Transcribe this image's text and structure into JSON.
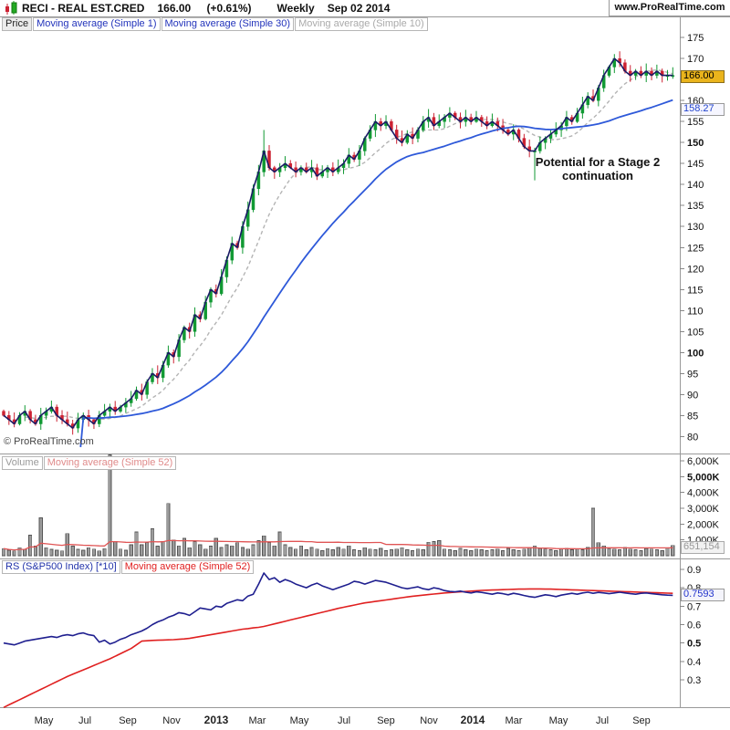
{
  "header": {
    "symbol_title": "RECI - REAL EST.CRED",
    "last_price": "166.00",
    "change_percent": "(+0.61%)",
    "timeframe": "Weekly",
    "date": "Sep 02 2014",
    "website": "www.ProRealTime.com"
  },
  "price_pane": {
    "buttons": [
      {
        "label": "Price",
        "color": "#222222",
        "bg": "#ececec"
      },
      {
        "label": "Moving average (Simple 1)",
        "color": "#2233bb",
        "bg": "#ffffff"
      },
      {
        "label": "Moving average (Simple 30)",
        "color": "#2233bb",
        "bg": "#ffffff"
      },
      {
        "label": "Moving average (Simple 10)",
        "color": "#aaaaaa",
        "bg": "#ffffff"
      }
    ],
    "annotation_line1": "Potential for a Stage 2",
    "annotation_line2": "continuation",
    "copyright": "© ProRealTime.com",
    "last_price_label": "166.00",
    "ma30_label": "158.27"
  },
  "volume_pane": {
    "buttons": [
      {
        "label": "Volume",
        "color": "#999999",
        "bg": "#ffffff"
      },
      {
        "label": "Moving average (Simple 52)",
        "color": "#e08a8a",
        "bg": "#ffffff"
      }
    ],
    "last_volume_label": "651,154"
  },
  "rs_pane": {
    "buttons": [
      {
        "label": "RS (S&P500 Index) [*10]",
        "color": "#2233aa",
        "bg": "#ffffff"
      },
      {
        "label": "Moving average (Simple 52)",
        "color": "#e02020",
        "bg": "#ffffff"
      }
    ],
    "last_rs_label": "0.7593"
  },
  "colors": {
    "candle_up": "#119933",
    "candle_down": "#cc2233",
    "close_line": "#1b1b66",
    "ma10": "#b4b4b4",
    "ma30": "#2e59d9",
    "volume_bar_fill": "#9c9c9c",
    "volume_bar_stroke": "#555555",
    "volume_ma": "#e05555",
    "rs_line": "#1f1f8f",
    "rs_ma": "#e02020",
    "last_price_box_bg": "#eab41c",
    "axis_text": "#111111",
    "border": "#999999"
  },
  "chart_data": {
    "type": "candlestick-multi-pane",
    "x0": 4,
    "dx": 5.82,
    "price": {
      "ylim": [
        78,
        177
      ],
      "ticks": [
        80,
        85,
        90,
        95,
        100,
        105,
        110,
        115,
        120,
        125,
        130,
        135,
        140,
        145,
        150,
        155,
        160,
        165,
        170,
        175
      ],
      "bold_ticks": [
        100,
        150
      ],
      "closes": [
        85,
        84,
        83,
        85,
        86,
        84,
        83,
        85,
        86,
        87,
        85,
        84,
        83,
        82,
        84,
        85,
        84,
        83,
        85,
        86,
        87,
        86,
        87,
        88,
        89,
        91,
        90,
        93,
        95,
        94,
        97,
        100,
        99,
        103,
        106,
        105,
        109,
        108,
        112,
        115,
        114,
        118,
        122,
        126,
        125,
        130,
        134,
        139,
        143,
        148,
        144,
        143,
        144,
        145,
        144,
        143,
        144,
        143,
        144,
        142,
        143,
        144,
        143,
        144,
        145,
        147,
        146,
        148,
        151,
        153,
        155,
        154,
        155,
        153,
        151,
        150,
        152,
        151,
        153,
        155,
        156,
        154,
        155,
        156,
        157,
        156,
        155,
        156,
        155,
        156,
        155,
        154,
        155,
        154,
        153,
        152,
        153,
        151,
        149,
        148,
        148,
        150,
        151,
        152,
        153,
        154,
        156,
        155,
        157,
        159,
        161,
        160,
        163,
        166,
        168,
        170,
        169,
        167,
        166,
        167,
        166,
        167,
        166,
        167,
        166,
        166,
        166
      ],
      "wick_overrides": {
        "49": {
          "h": 153
        },
        "100": {
          "l": 141
        }
      }
    },
    "volume": {
      "ticks_k": [
        1000,
        2000,
        3000,
        4000,
        5000,
        6000
      ],
      "bold_ticks_k": [
        5000
      ],
      "values_k": [
        450,
        350,
        300,
        500,
        420,
        1300,
        600,
        2400,
        500,
        400,
        350,
        300,
        1400,
        600,
        400,
        350,
        500,
        420,
        300,
        450,
        6400,
        900,
        420,
        350,
        700,
        1500,
        700,
        820,
        1700,
        600,
        900,
        3300,
        1000,
        620,
        1100,
        500,
        900,
        700,
        420,
        600,
        1100,
        520,
        700,
        620,
        820,
        520,
        420,
        700,
        950,
        1250,
        820,
        620,
        1500,
        700,
        520,
        420,
        620,
        380,
        520,
        420,
        320,
        450,
        380,
        520,
        420,
        620,
        380,
        320,
        500,
        420,
        380,
        460,
        320,
        380,
        420,
        500,
        380,
        320,
        420,
        380,
        850,
        900,
        950,
        420,
        380,
        320,
        460,
        380,
        320,
        420,
        380,
        320,
        380,
        420,
        320,
        460,
        380,
        320,
        420,
        500,
        620,
        460,
        420,
        380,
        320,
        420,
        460,
        380,
        420,
        380,
        520,
        3000,
        820,
        620,
        460,
        420,
        380,
        520,
        420,
        380,
        320,
        460,
        420,
        380,
        320,
        500,
        651
      ]
    },
    "rs": {
      "ticks": [
        0.3,
        0.4,
        0.5,
        0.6,
        0.7,
        0.8,
        0.9
      ],
      "bold_ticks": [
        0.5
      ],
      "values": [
        0.5,
        0.495,
        0.49,
        0.5,
        0.51,
        0.515,
        0.52,
        0.525,
        0.53,
        0.535,
        0.53,
        0.54,
        0.545,
        0.54,
        0.55,
        0.555,
        0.545,
        0.54,
        0.505,
        0.515,
        0.495,
        0.505,
        0.52,
        0.53,
        0.545,
        0.555,
        0.565,
        0.58,
        0.6,
        0.615,
        0.625,
        0.64,
        0.65,
        0.665,
        0.66,
        0.65,
        0.67,
        0.69,
        0.685,
        0.68,
        0.7,
        0.695,
        0.715,
        0.725,
        0.735,
        0.73,
        0.755,
        0.765,
        0.82,
        0.88,
        0.845,
        0.855,
        0.83,
        0.845,
        0.835,
        0.82,
        0.81,
        0.8,
        0.815,
        0.825,
        0.81,
        0.8,
        0.79,
        0.8,
        0.81,
        0.82,
        0.835,
        0.83,
        0.82,
        0.83,
        0.84,
        0.835,
        0.83,
        0.82,
        0.81,
        0.8,
        0.795,
        0.8,
        0.805,
        0.795,
        0.79,
        0.8,
        0.795,
        0.785,
        0.78,
        0.778,
        0.782,
        0.776,
        0.772,
        0.778,
        0.775,
        0.77,
        0.765,
        0.772,
        0.768,
        0.762,
        0.77,
        0.765,
        0.758,
        0.752,
        0.748,
        0.755,
        0.762,
        0.758,
        0.752,
        0.76,
        0.765,
        0.77,
        0.765,
        0.772,
        0.776,
        0.77,
        0.775,
        0.772,
        0.768,
        0.772,
        0.776,
        0.772,
        0.768,
        0.765,
        0.77,
        0.772,
        0.768,
        0.765,
        0.762,
        0.76,
        0.7593
      ],
      "ma52": [
        0.15,
        0.164,
        0.178,
        0.192,
        0.206,
        0.22,
        0.234,
        0.248,
        0.262,
        0.276,
        0.29,
        0.304,
        0.318,
        0.33,
        0.342,
        0.354,
        0.366,
        0.378,
        0.39,
        0.402,
        0.414,
        0.428,
        0.442,
        0.456,
        0.47,
        0.49,
        0.51,
        0.512,
        0.514,
        0.515,
        0.516,
        0.517,
        0.518,
        0.52,
        0.522,
        0.525,
        0.53,
        0.535,
        0.54,
        0.545,
        0.55,
        0.555,
        0.56,
        0.565,
        0.57,
        0.575,
        0.578,
        0.582,
        0.585,
        0.59,
        0.597,
        0.604,
        0.611,
        0.618,
        0.625,
        0.632,
        0.639,
        0.646,
        0.653,
        0.66,
        0.667,
        0.674,
        0.681,
        0.688,
        0.694,
        0.7,
        0.706,
        0.712,
        0.718,
        0.722,
        0.726,
        0.73,
        0.734,
        0.738,
        0.742,
        0.746,
        0.75,
        0.754,
        0.757,
        0.76,
        0.763,
        0.766,
        0.769,
        0.772,
        0.774,
        0.776,
        0.778,
        0.78,
        0.782,
        0.784,
        0.786,
        0.787,
        0.788,
        0.789,
        0.79,
        0.791,
        0.792,
        0.793,
        0.793,
        0.794,
        0.794,
        0.794,
        0.793,
        0.793,
        0.792,
        0.791,
        0.79,
        0.789,
        0.788,
        0.787,
        0.786,
        0.785,
        0.784,
        0.783,
        0.782,
        0.781,
        0.78,
        0.779,
        0.778,
        0.777,
        0.776,
        0.775,
        0.774,
        0.773,
        0.772,
        0.771,
        0.77
      ]
    },
    "time_labels": [
      {
        "text": "May",
        "x": 48,
        "bold": false
      },
      {
        "text": "Jul",
        "x": 93,
        "bold": false
      },
      {
        "text": "Sep",
        "x": 140,
        "bold": false
      },
      {
        "text": "Nov",
        "x": 188,
        "bold": false
      },
      {
        "text": "2013",
        "x": 237,
        "bold": true
      },
      {
        "text": "Mar",
        "x": 282,
        "bold": false
      },
      {
        "text": "May",
        "x": 328,
        "bold": false
      },
      {
        "text": "Jul",
        "x": 377,
        "bold": false
      },
      {
        "text": "Sep",
        "x": 423,
        "bold": false
      },
      {
        "text": "Nov",
        "x": 470,
        "bold": false
      },
      {
        "text": "2014",
        "x": 518,
        "bold": true
      },
      {
        "text": "Mar",
        "x": 563,
        "bold": false
      },
      {
        "text": "May",
        "x": 612,
        "bold": false
      },
      {
        "text": "Jul",
        "x": 660,
        "bold": false
      },
      {
        "text": "Sep",
        "x": 703,
        "bold": false
      }
    ]
  }
}
